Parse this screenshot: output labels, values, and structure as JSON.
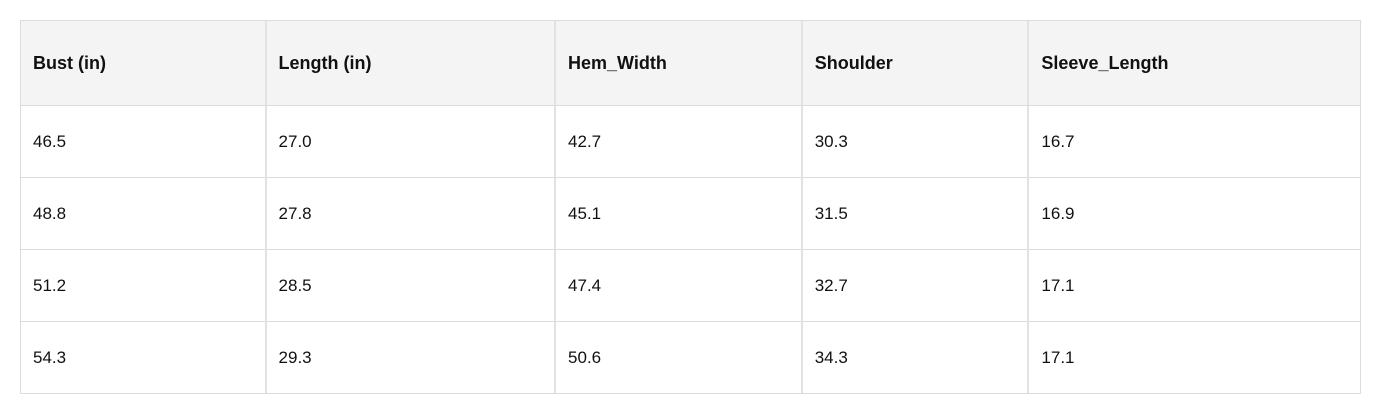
{
  "table": {
    "header": [
      "Bust (in)",
      "Length (in)",
      "Hem_Width",
      "Shoulder",
      "Sleeve_Length"
    ],
    "rows": [
      [
        "46.5",
        "27.0",
        "42.7",
        "30.3",
        "16.7"
      ],
      [
        "48.8",
        "27.8",
        "45.1",
        "31.5",
        "16.9"
      ],
      [
        "51.2",
        "28.5",
        "47.4",
        "32.7",
        "17.1"
      ],
      [
        "54.3",
        "29.3",
        "50.6",
        "34.3",
        "17.1"
      ]
    ]
  }
}
